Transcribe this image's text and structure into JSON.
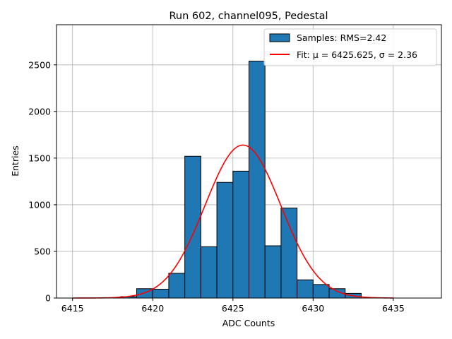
{
  "chart_data": {
    "type": "bar",
    "title": "Run 602, channel095, Pedestal",
    "xlabel": "ADC Counts",
    "ylabel": "Entries",
    "xlim": [
      6414,
      6438
    ],
    "ylim": [
      0,
      2930
    ],
    "grid": true,
    "legend_position": "top-right",
    "x_ticks": [
      6415,
      6420,
      6425,
      6430,
      6435
    ],
    "y_ticks": [
      0,
      500,
      1000,
      1500,
      2000,
      2500
    ],
    "histogram": {
      "name": "Samples: RMS=2.42",
      "color": "#1f77b4",
      "edge_color": "#000000",
      "bins": [
        {
          "x0": 6418,
          "x1": 6419,
          "value": 15
        },
        {
          "x0": 6419,
          "x1": 6420,
          "value": 100
        },
        {
          "x0": 6420,
          "x1": 6421,
          "value": 95
        },
        {
          "x0": 6421,
          "x1": 6422,
          "value": 265
        },
        {
          "x0": 6422,
          "x1": 6423,
          "value": 1520
        },
        {
          "x0": 6423,
          "x1": 6424,
          "value": 550
        },
        {
          "x0": 6424,
          "x1": 6425,
          "value": 1240
        },
        {
          "x0": 6425,
          "x1": 6426,
          "value": 1360
        },
        {
          "x0": 6426,
          "x1": 6427,
          "value": 2540
        },
        {
          "x0": 6427,
          "x1": 6428,
          "value": 560
        },
        {
          "x0": 6428,
          "x1": 6429,
          "value": 965
        },
        {
          "x0": 6429,
          "x1": 6430,
          "value": 195
        },
        {
          "x0": 6430,
          "x1": 6431,
          "value": 145
        },
        {
          "x0": 6431,
          "x1": 6432,
          "value": 100
        },
        {
          "x0": 6432,
          "x1": 6433,
          "value": 50
        }
      ]
    },
    "fit": {
      "name": "Fit: μ = 6425.625, σ = 2.36",
      "color": "#ff0000",
      "mu": 6425.625,
      "sigma": 2.36,
      "amplitude": 1640,
      "x_range": [
        6415,
        6435
      ]
    }
  }
}
